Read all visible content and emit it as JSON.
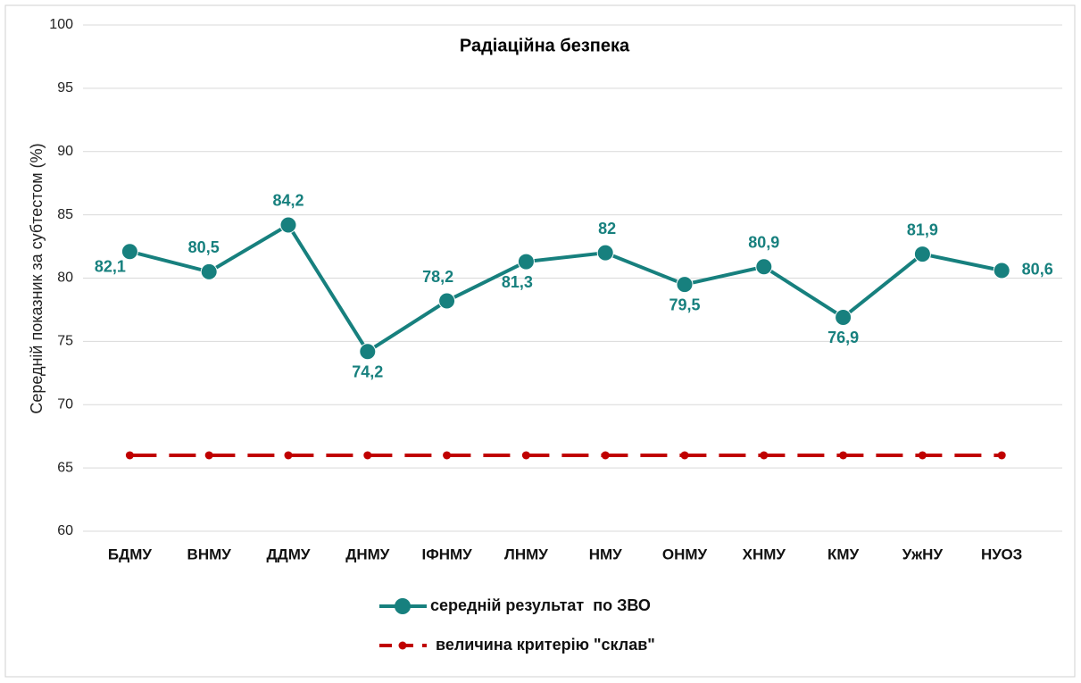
{
  "chart_data": {
    "type": "line",
    "title": "Радіаційна безпека",
    "y_label": "Середній показник за субтестом (%)",
    "categories": [
      "БДМУ",
      "ВНМУ",
      "ДДМУ",
      "ДНМУ",
      "ІФНМУ",
      "ЛНМУ",
      "НМУ",
      "ОНМУ",
      "ХНМУ",
      "КМУ",
      "УжНУ",
      "НУОЗ"
    ],
    "series": [
      {
        "name": "середній результат  по ЗВО",
        "color": "#17807e",
        "values": [
          82.1,
          80.5,
          84.2,
          74.2,
          78.2,
          81.3,
          82,
          79.5,
          80.9,
          76.9,
          81.9,
          80.6
        ],
        "value_labels": [
          "82,1",
          "80,5",
          "84,2",
          "74,2",
          "78,2",
          "81,3",
          "82",
          "79,5",
          "80,9",
          "76,9",
          "81,9",
          "80,6"
        ]
      },
      {
        "name": "величина критерію \"склав\"",
        "color": "#c00000",
        "dashed": true,
        "values": [
          66,
          66,
          66,
          66,
          66,
          66,
          66,
          66,
          66,
          66,
          66,
          66
        ]
      }
    ],
    "ylim": [
      60,
      100
    ],
    "yticks": [
      60,
      65,
      70,
      75,
      80,
      85,
      90,
      95,
      100
    ],
    "grid": true,
    "legend": "bottom"
  }
}
